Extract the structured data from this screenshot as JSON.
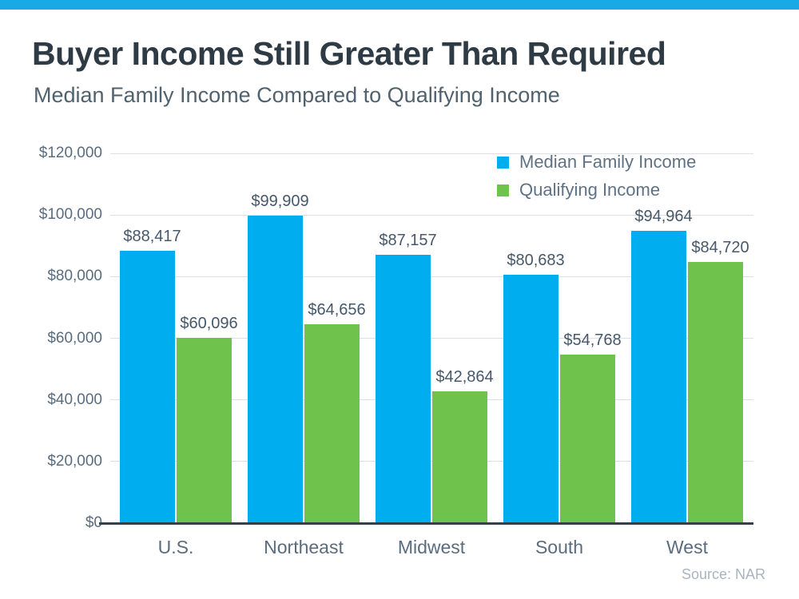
{
  "page": {
    "title": "Buyer Income Still Greater Than Required",
    "subtitle": "Median Family Income Compared to Qualifying Income",
    "source": "Source: NAR"
  },
  "colors": {
    "accent_bar": "#18aae7",
    "title_text": "#2e3b45",
    "subtitle_text": "#51626f",
    "axis_text": "#5a6c7e",
    "value_label_text": "#47586a",
    "gridline": "#dce0e4",
    "baseline": "#343f4a",
    "series_blue": "#00adee",
    "series_green": "#6fc24c",
    "source_text": "#abb4bd"
  },
  "chart_data": {
    "type": "bar",
    "categories": [
      "U.S.",
      "Northeast",
      "Midwest",
      "South",
      "West"
    ],
    "series": [
      {
        "name": "Median Family Income",
        "color": "#00adee",
        "values": [
          88417,
          99909,
          87157,
          80683,
          94964
        ],
        "value_labels": [
          "$88,417",
          "$99,909",
          "$87,157",
          "$80,683",
          "$94,964"
        ]
      },
      {
        "name": "Qualifying Income",
        "color": "#6fc24c",
        "values": [
          60096,
          64656,
          42864,
          54768,
          84720
        ],
        "value_labels": [
          "$60,096",
          "$64,656",
          "$42,864",
          "$54,768",
          "$84,720"
        ]
      }
    ],
    "title": "Buyer Income Still Greater Than Required",
    "subtitle": "Median Family Income Compared to Qualifying Income",
    "xlabel": "",
    "ylabel": "",
    "ylim": [
      0,
      120000
    ],
    "grid": true,
    "legend_position": "top-right",
    "y_ticks": [
      {
        "value": 0,
        "label": "$0"
      },
      {
        "value": 20000,
        "label": "$20,000"
      },
      {
        "value": 40000,
        "label": "$40,000"
      },
      {
        "value": 60000,
        "label": "$60,000"
      },
      {
        "value": 80000,
        "label": "$80,000"
      },
      {
        "value": 100000,
        "label": "$100,000"
      },
      {
        "value": 120000,
        "label": "$120,000"
      }
    ]
  }
}
